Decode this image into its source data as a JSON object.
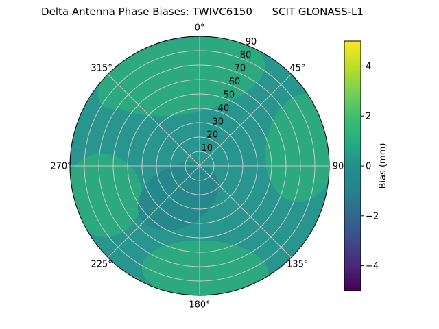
{
  "chart_data": {
    "type": "polar_contour",
    "title": "Delta Antenna Phase Biases: TWIVC6150      SCIT GLONASS-L1",
    "station": "TWIVC6150",
    "solution": "SCIT GLONASS-L1",
    "angular_ticks": [
      {
        "angle_deg": 0,
        "label": "0°"
      },
      {
        "angle_deg": 45,
        "label": "45°"
      },
      {
        "angle_deg": 90,
        "label": "90"
      },
      {
        "angle_deg": 135,
        "label": "135°"
      },
      {
        "angle_deg": 180,
        "label": "180°"
      },
      {
        "angle_deg": 225,
        "label": "225°"
      },
      {
        "angle_deg": 270,
        "label": "270°"
      },
      {
        "angle_deg": 315,
        "label": "315°"
      }
    ],
    "radial_ticks": [
      {
        "value": 10,
        "label": "10"
      },
      {
        "value": 20,
        "label": "20"
      },
      {
        "value": 30,
        "label": "30"
      },
      {
        "value": 40,
        "label": "40"
      },
      {
        "value": 50,
        "label": "50"
      },
      {
        "value": 60,
        "label": "60"
      },
      {
        "value": 70,
        "label": "70"
      },
      {
        "value": 80,
        "label": "80"
      },
      {
        "value": 90,
        "label": "90"
      }
    ],
    "radial_max": 90,
    "radial_label_angle_deg": 22.5,
    "grid_color": "#c9c9c9",
    "colorbar": {
      "label": "Bias (mm)",
      "vmin": -5,
      "vmax": 5,
      "colormap": "viridis",
      "ticks": [
        {
          "value": 4,
          "label": "4"
        },
        {
          "value": 2,
          "label": "2"
        },
        {
          "value": 0,
          "label": "0"
        },
        {
          "value": -2,
          "label": "−2"
        },
        {
          "value": -4,
          "label": "−4"
        }
      ],
      "gradient_stops": [
        {
          "offset": "0%",
          "color": "#440154"
        },
        {
          "offset": "10%",
          "color": "#482878"
        },
        {
          "offset": "20%",
          "color": "#3e4a89"
        },
        {
          "offset": "30%",
          "color": "#31688e"
        },
        {
          "offset": "40%",
          "color": "#26828e"
        },
        {
          "offset": "50%",
          "color": "#21918c"
        },
        {
          "offset": "60%",
          "color": "#27ad81"
        },
        {
          "offset": "70%",
          "color": "#42be71"
        },
        {
          "offset": "80%",
          "color": "#7ad151"
        },
        {
          "offset": "90%",
          "color": "#bddf26"
        },
        {
          "offset": "100%",
          "color": "#fde725"
        }
      ]
    },
    "field": {
      "base_bias_mm": 0.5,
      "base_color": "#28958e",
      "regions": [
        {
          "name": "green-top",
          "bias_mm": 1.5,
          "color": "#2da97f",
          "azimuth_deg": 350,
          "elevation_deg": 27,
          "rx_deg": 57,
          "ry_deg": 26,
          "rot_deg": -10
        },
        {
          "name": "green-top-left-rim",
          "bias_mm": 1.5,
          "color": "#2da97f",
          "azimuth_deg": 318,
          "elevation_deg": 12,
          "rx_deg": 22,
          "ry_deg": 14,
          "rot_deg": -45
        },
        {
          "name": "green-right",
          "bias_mm": 1.5,
          "color": "#2da97f",
          "azimuth_deg": 80,
          "elevation_deg": 17,
          "rx_deg": 26,
          "ry_deg": 38,
          "rot_deg": 10
        },
        {
          "name": "green-bottom",
          "bias_mm": 1.5,
          "color": "#2da97f",
          "azimuth_deg": 177,
          "elevation_deg": 17,
          "rx_deg": 44,
          "ry_deg": 21,
          "rot_deg": 3
        },
        {
          "name": "green-left",
          "bias_mm": 1.5,
          "color": "#2da97f",
          "azimuth_deg": 253,
          "elevation_deg": 20,
          "rx_deg": 27,
          "ry_deg": 29,
          "rot_deg": -15
        },
        {
          "name": "teal-center",
          "bias_mm": -0.5,
          "color": "#25898b",
          "azimuth_deg": 215,
          "elevation_deg": 64,
          "rx_deg": 30,
          "ry_deg": 21,
          "rot_deg": -30
        }
      ]
    }
  }
}
